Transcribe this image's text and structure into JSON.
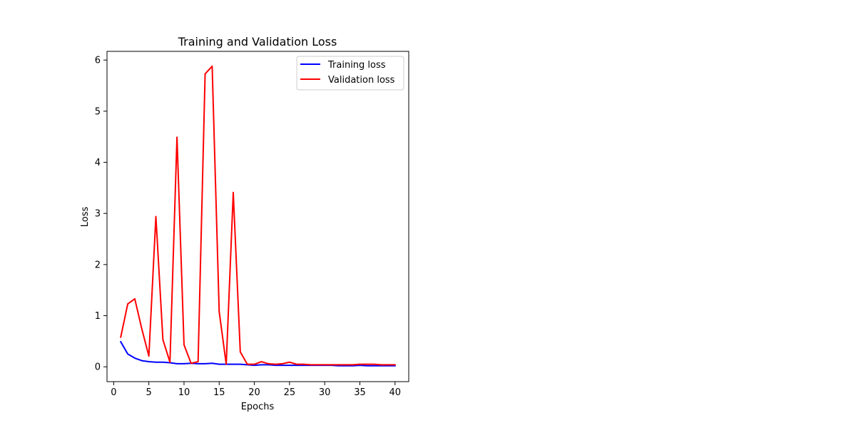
{
  "chart_data": {
    "type": "line",
    "title": "Training and Validation Loss",
    "xlabel": "Epochs",
    "ylabel": "Loss",
    "xlim": [
      -0.95,
      41.95
    ],
    "ylim": [
      -0.29,
      6.17
    ],
    "xticks": [
      0,
      5,
      10,
      15,
      20,
      25,
      30,
      35,
      40
    ],
    "yticks": [
      0,
      1,
      2,
      3,
      4,
      5,
      6
    ],
    "grid": false,
    "legend_position": "top-right",
    "x": [
      1,
      2,
      3,
      4,
      5,
      6,
      7,
      8,
      9,
      10,
      11,
      12,
      13,
      14,
      15,
      16,
      17,
      18,
      19,
      20,
      21,
      22,
      23,
      24,
      25,
      26,
      27,
      28,
      29,
      30,
      31,
      32,
      33,
      34,
      35,
      36,
      37,
      38,
      39,
      40
    ],
    "series": [
      {
        "name": "Training loss",
        "color": "#0000ff",
        "values": [
          0.49,
          0.25,
          0.17,
          0.12,
          0.1,
          0.09,
          0.09,
          0.08,
          0.06,
          0.06,
          0.07,
          0.06,
          0.06,
          0.07,
          0.05,
          0.05,
          0.05,
          0.05,
          0.04,
          0.03,
          0.04,
          0.04,
          0.03,
          0.03,
          0.03,
          0.03,
          0.03,
          0.03,
          0.03,
          0.03,
          0.03,
          0.02,
          0.02,
          0.02,
          0.03,
          0.02,
          0.02,
          0.02,
          0.02,
          0.02
        ]
      },
      {
        "name": "Validation loss",
        "color": "#ff0000",
        "values": [
          0.58,
          1.23,
          1.33,
          0.74,
          0.21,
          2.94,
          0.53,
          0.09,
          4.49,
          0.43,
          0.07,
          0.1,
          5.73,
          5.88,
          1.08,
          0.05,
          3.41,
          0.29,
          0.05,
          0.05,
          0.1,
          0.06,
          0.05,
          0.06,
          0.09,
          0.05,
          0.05,
          0.04,
          0.04,
          0.04,
          0.04,
          0.04,
          0.04,
          0.04,
          0.05,
          0.05,
          0.05,
          0.04,
          0.04,
          0.04
        ]
      }
    ]
  }
}
